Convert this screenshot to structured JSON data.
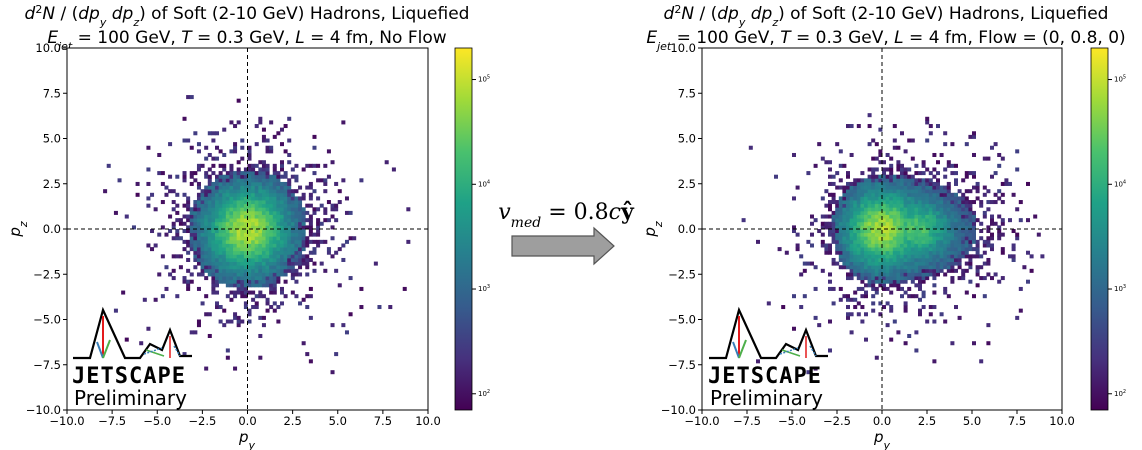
{
  "arrow": {
    "label": "v_med = 0.8cŷ"
  },
  "logo": {
    "brand": "JETSCAPE",
    "tag": "Preliminary"
  },
  "colormap": [
    "#440154",
    "#46327e",
    "#365c8d",
    "#277f8e",
    "#1fa187",
    "#4ac16d",
    "#a0da39",
    "#fde725"
  ],
  "chart_data": [
    {
      "type": "heatmap",
      "title": "d²N / (dp_y dp_z) of Soft (2-10 GeV) Hadrons, Liquefied",
      "subtitle": "E_jet = 100 GeV, T = 0.3 GeV, L = 4 fm, No Flow",
      "xlabel": "p_y",
      "ylabel": "p_z",
      "xlim": [
        -10,
        10
      ],
      "ylim": [
        -10,
        10
      ],
      "xticks": [
        -10.0,
        -7.5,
        -5.0,
        -2.5,
        0.0,
        2.5,
        5.0,
        7.5,
        10.0
      ],
      "yticks": [
        -10.0,
        -7.5,
        -5.0,
        -2.5,
        0.0,
        2.5,
        5.0,
        7.5,
        10.0
      ],
      "colorbar": {
        "scale": "log",
        "range": [
          70,
          200000
        ],
        "ticks": [
          100,
          1000,
          10000,
          100000
        ]
      },
      "peaks": [
        {
          "py": 0.0,
          "pz": 0.0,
          "sigma_y": 1.4,
          "sigma_z": 1.4,
          "weight": 1.0
        }
      ],
      "extent": {
        "ry": 3.3,
        "rz": 3.3,
        "scatter_r": 6.0
      },
      "dashed_lines": {
        "x": 0,
        "y": 0
      },
      "grid": false
    },
    {
      "type": "heatmap",
      "title": "d²N / (dp_y dp_z) of Soft (2-10 GeV) Hadrons, Liquefied",
      "subtitle": "E_jet = 100 GeV, T = 0.3 GeV, L = 4 fm, Flow = (0, 0.8, 0)",
      "xlabel": "p_y",
      "ylabel": "p_z",
      "xlim": [
        -10,
        10
      ],
      "ylim": [
        -10,
        10
      ],
      "xticks": [
        -10.0,
        -7.5,
        -5.0,
        -2.5,
        0.0,
        2.5,
        5.0,
        7.5,
        10.0
      ],
      "yticks": [
        -10.0,
        -7.5,
        -5.0,
        -2.5,
        0.0,
        2.5,
        5.0,
        7.5,
        10.0
      ],
      "colorbar": {
        "scale": "log",
        "range": [
          70,
          200000
        ],
        "ticks": [
          100,
          1000,
          10000,
          100000
        ]
      },
      "peaks": [
        {
          "py": 0.0,
          "pz": 0.0,
          "sigma_y": 1.3,
          "sigma_z": 1.3,
          "weight": 1.0
        },
        {
          "py": 2.0,
          "pz": 0.0,
          "sigma_y": 1.1,
          "sigma_z": 1.0,
          "weight": 0.7
        }
      ],
      "extent": {
        "ry_neg": 2.8,
        "ry_pos": 5.3,
        "rz": 3.0,
        "scatter_r": 6.5
      },
      "dashed_lines": {
        "x": 0,
        "y": 0
      },
      "grid": false
    }
  ]
}
